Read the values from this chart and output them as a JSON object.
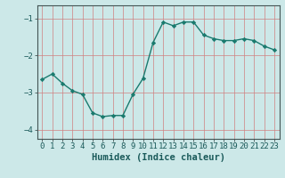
{
  "x": [
    0,
    1,
    2,
    3,
    4,
    5,
    6,
    7,
    8,
    9,
    10,
    11,
    12,
    13,
    14,
    15,
    16,
    17,
    18,
    19,
    20,
    21,
    22,
    23
  ],
  "y": [
    -2.65,
    -2.5,
    -2.75,
    -2.95,
    -3.05,
    -3.55,
    -3.65,
    -3.62,
    -3.62,
    -3.05,
    -2.62,
    -1.65,
    -1.1,
    -1.2,
    -1.1,
    -1.1,
    -1.45,
    -1.55,
    -1.6,
    -1.6,
    -1.55,
    -1.6,
    -1.75,
    -1.85
  ],
  "line_color": "#1a7a6e",
  "marker": "D",
  "marker_size": 2.2,
  "bg_color": "#cce8e8",
  "grid_color": "#d08080",
  "title": "",
  "xlabel": "Humidex (Indice chaleur)",
  "ylabel": "",
  "xlim": [
    -0.5,
    23.5
  ],
  "ylim": [
    -4.25,
    -0.65
  ],
  "yticks": [
    -4,
    -3,
    -2,
    -1
  ],
  "xtick_labels": [
    "0",
    "1",
    "2",
    "3",
    "4",
    "5",
    "6",
    "7",
    "8",
    "9",
    "10",
    "11",
    "12",
    "13",
    "14",
    "15",
    "16",
    "17",
    "18",
    "19",
    "20",
    "21",
    "22",
    "23"
  ],
  "xlabel_fontsize": 7.5,
  "tick_fontsize": 6.5,
  "line_width": 1.0
}
